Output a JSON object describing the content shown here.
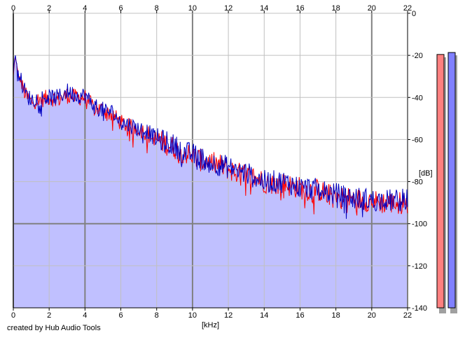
{
  "credit": "created by Hub Audio Tools",
  "chart_data": {
    "type": "area",
    "xlabel": "[kHz]",
    "ylabel": "[dB]",
    "xlim": [
      0,
      22
    ],
    "ylim": [
      -140,
      0
    ],
    "x_ticks": [
      0,
      2,
      4,
      6,
      8,
      10,
      12,
      14,
      16,
      18,
      20,
      22
    ],
    "y_ticks": [
      0,
      -20,
      -40,
      -60,
      -80,
      -100,
      -120,
      -140
    ],
    "grid": true,
    "colors": {
      "fill": "#c0c0ff",
      "left_channel": "#ff0000",
      "right_channel": "#0000c0",
      "grid_minor": "#c0c0c0",
      "grid_major": "#808080",
      "meter_left": "#ff8080",
      "meter_right": "#8080ff"
    },
    "x": [
      0,
      0.1,
      0.25,
      0.5,
      0.75,
      1,
      1.5,
      2,
      2.5,
      3,
      3.5,
      4,
      4.5,
      5,
      5.5,
      6,
      6.5,
      7,
      7.5,
      8,
      8.5,
      9,
      9.5,
      10,
      10.5,
      11,
      11.5,
      12,
      12.5,
      13,
      13.5,
      14,
      14.5,
      15,
      15.5,
      16,
      16.5,
      17,
      17.5,
      18,
      18.5,
      19,
      19.5,
      20,
      20.5,
      21,
      21.5,
      22
    ],
    "series": [
      {
        "values": [
          -30,
          -20,
          -28,
          -35,
          -40,
          -42,
          -41,
          -40,
          -41,
          -39,
          -40,
          -40,
          -45,
          -46,
          -48,
          -52,
          -54,
          -55,
          -57,
          -60,
          -62,
          -64,
          -66,
          -68,
          -70,
          -71,
          -72,
          -74,
          -76,
          -77,
          -78,
          -80,
          -81,
          -81,
          -82,
          -83,
          -84,
          -84,
          -86,
          -87,
          -88,
          -88,
          -89,
          -89,
          -90,
          -90,
          -90,
          -90
        ]
      },
      {
        "values": [
          -29,
          -19,
          -27,
          -34,
          -39,
          -41,
          -40,
          -40,
          -40,
          -37,
          -39,
          -39,
          -44,
          -46,
          -47,
          -52,
          -53,
          -55,
          -56,
          -60,
          -61,
          -63,
          -66,
          -67,
          -69,
          -71,
          -72,
          -73,
          -75,
          -76,
          -78,
          -80,
          -80,
          -80,
          -81,
          -83,
          -83,
          -84,
          -85,
          -86,
          -87,
          -88,
          -88,
          -89,
          -89,
          -89,
          -89,
          -88
        ]
      }
    ],
    "meters": {
      "left_level": -10,
      "right_level": -9
    }
  }
}
